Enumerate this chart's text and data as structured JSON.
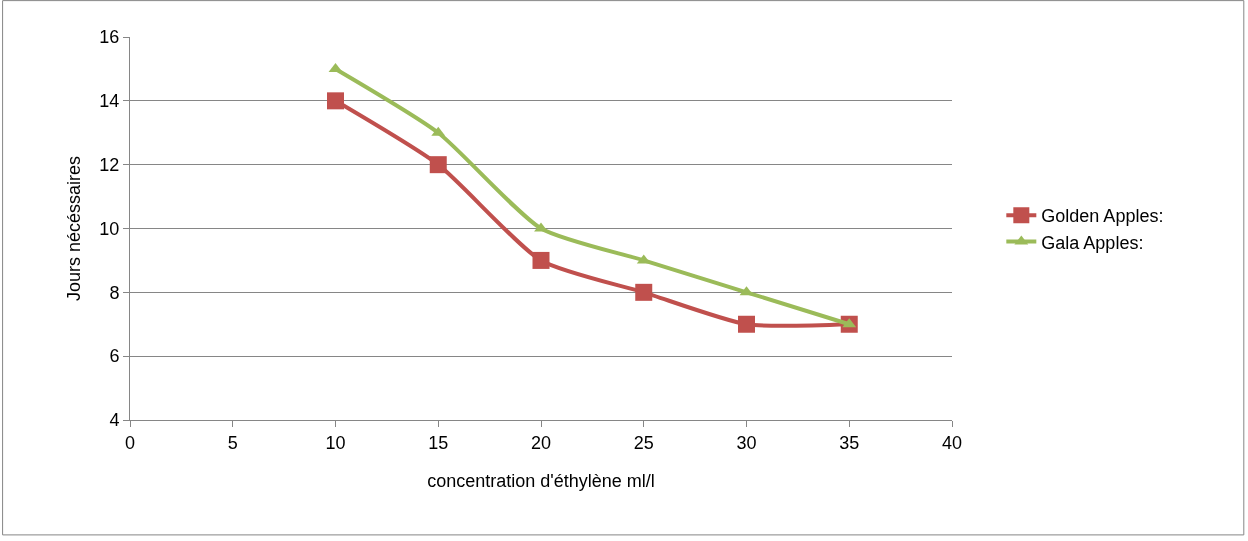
{
  "chart_data": {
    "type": "line",
    "xlabel": "concentration d'éthylène ml/l",
    "ylabel": "Jours nécéssaires",
    "x": [
      10,
      15,
      20,
      25,
      30,
      35
    ],
    "series": [
      {
        "name": "Golden Apples:",
        "color": "#c0504d",
        "marker": "square",
        "values": [
          14,
          12,
          9,
          8,
          7,
          7
        ]
      },
      {
        "name": "Gala Apples:",
        "color": "#9bbb59",
        "marker": "triangle",
        "values": [
          15,
          13,
          10,
          9,
          8,
          7
        ]
      }
    ],
    "xlim": [
      0,
      40
    ],
    "xticks": [
      0,
      5,
      10,
      15,
      20,
      25,
      30,
      35,
      40
    ],
    "ylim": [
      4,
      16
    ],
    "yticks": [
      4,
      6,
      8,
      10,
      12,
      14,
      16
    ],
    "grid": "y",
    "legend": "right",
    "line_style": "solid"
  }
}
